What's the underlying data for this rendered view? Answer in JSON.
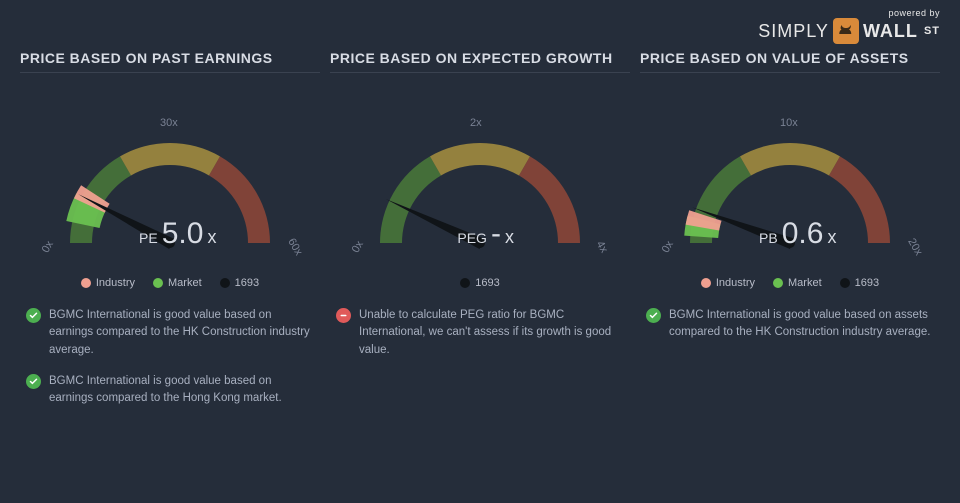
{
  "branding": {
    "powered": "powered by",
    "brand_left": "SIMPLY",
    "brand_right": "WALL",
    "brand_suffix": "ST"
  },
  "colors": {
    "background": "#252d3a",
    "industry": "#f0a090",
    "market": "#6ac050",
    "company": "#101418",
    "gauge_green": "#4a7a3a",
    "gauge_yellow": "#a89040",
    "gauge_red": "#904838",
    "tick_text": "#7a8294",
    "needle": "#101418"
  },
  "panels": [
    {
      "title": "PRICE BASED ON PAST EARNINGS",
      "gauge": {
        "metric": "PE",
        "value": "5.0",
        "suffix": "x",
        "ticks": [
          "0x",
          "30x",
          "60x"
        ],
        "max": 60,
        "company_angle": 208,
        "wedges": [
          {
            "color_key": "market",
            "start": 192,
            "end": 208
          },
          {
            "color_key": "industry",
            "start": 205,
            "end": 213
          }
        ]
      },
      "legend": [
        {
          "label": "Industry",
          "color_key": "industry"
        },
        {
          "label": "Market",
          "color_key": "market"
        },
        {
          "label": "1693",
          "color_key": "company"
        }
      ],
      "notes": [
        {
          "status": "good",
          "text": "BGMC International is good value based on earnings compared to the HK Construction industry average."
        },
        {
          "status": "good",
          "text": "BGMC International is good value based on earnings compared to the Hong Kong market."
        }
      ]
    },
    {
      "title": "PRICE BASED ON EXPECTED GROWTH",
      "gauge": {
        "metric": "PEG",
        "value": "-",
        "suffix": "x",
        "ticks": [
          "0x",
          "2x",
          "4x"
        ],
        "max": 4,
        "company_angle": 205,
        "wedges": []
      },
      "legend": [
        {
          "label": "1693",
          "color_key": "company"
        }
      ],
      "notes": [
        {
          "status": "bad",
          "text": "Unable to calculate PEG ratio for BGMC International, we can't assess if its growth is good value."
        }
      ]
    },
    {
      "title": "PRICE BASED ON VALUE OF ASSETS",
      "gauge": {
        "metric": "PB",
        "value": "0.6",
        "suffix": "x",
        "ticks": [
          "0x",
          "10x",
          "20x"
        ],
        "max": 20,
        "company_angle": 200,
        "wedges": [
          {
            "color_key": "market",
            "start": 184,
            "end": 195
          },
          {
            "color_key": "industry",
            "start": 190,
            "end": 198
          }
        ]
      },
      "legend": [
        {
          "label": "Industry",
          "color_key": "industry"
        },
        {
          "label": "Market",
          "color_key": "market"
        },
        {
          "label": "1693",
          "color_key": "company"
        }
      ],
      "notes": [
        {
          "status": "good",
          "text": "BGMC International is good value based on assets compared to the HK Construction industry average."
        }
      ]
    }
  ]
}
